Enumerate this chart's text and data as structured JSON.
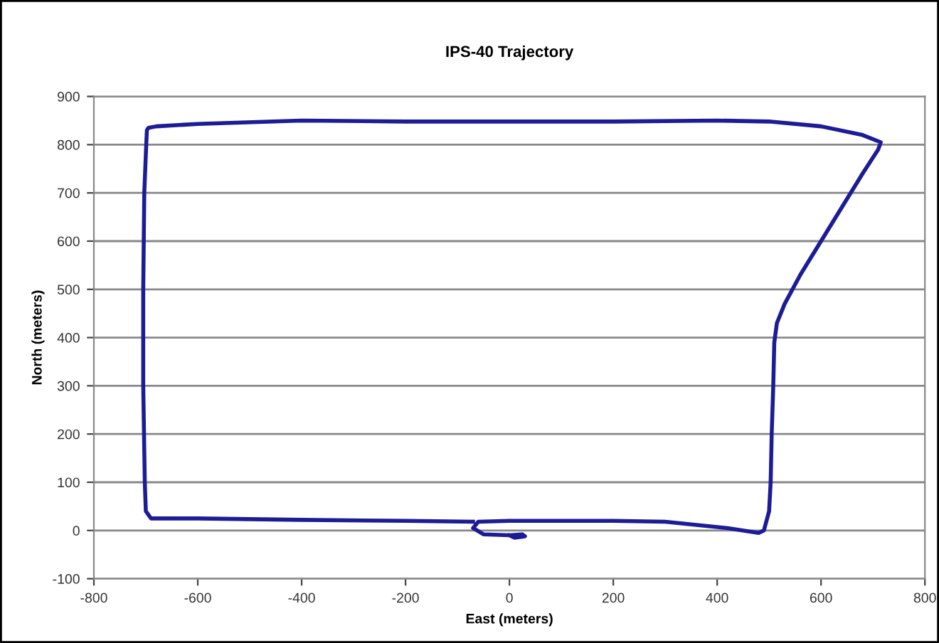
{
  "chart_data": {
    "type": "line",
    "title": "IPS-40 Trajectory",
    "xlabel": "East (meters)",
    "ylabel": "North (meters)",
    "xlim": [
      -800,
      800
    ],
    "xticks": [
      -800,
      -600,
      -400,
      -200,
      0,
      200,
      400,
      600,
      800
    ],
    "ylim": [
      -100,
      900
    ],
    "yticks": [
      -100,
      0,
      100,
      200,
      300,
      400,
      500,
      600,
      700,
      800,
      900
    ],
    "grid": "y",
    "marker": "none",
    "line_style": "solid",
    "series": [
      {
        "color": "#1c1c96",
        "x": [
          -70,
          -200,
          -400,
          -600,
          -690,
          -700,
          -702,
          -705,
          -705,
          -703,
          -700,
          -698,
          -695,
          -680,
          -600,
          -400,
          -200,
          0,
          200,
          400,
          500,
          600,
          680,
          715,
          710,
          680,
          640,
          600,
          560,
          530,
          515,
          510,
          508,
          505,
          503,
          500,
          490,
          480,
          420,
          300,
          200,
          0,
          -60,
          -70,
          -50,
          0,
          25,
          30,
          10,
          0
        ],
        "values": [
          18,
          20,
          22,
          25,
          25,
          40,
          100,
          300,
          500,
          700,
          780,
          830,
          835,
          838,
          843,
          850,
          848,
          848,
          848,
          850,
          848,
          838,
          820,
          805,
          790,
          740,
          670,
          600,
          530,
          470,
          430,
          390,
          300,
          200,
          100,
          40,
          0,
          -5,
          5,
          18,
          20,
          20,
          18,
          5,
          -8,
          -10,
          -8,
          -12,
          -15,
          -10
        ]
      }
    ]
  }
}
